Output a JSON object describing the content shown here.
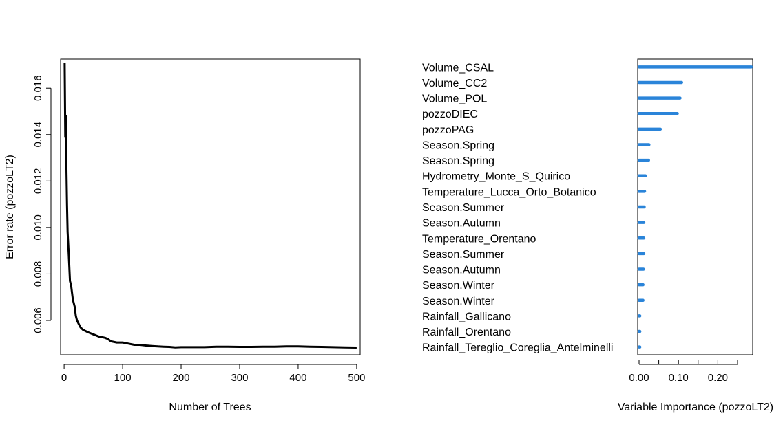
{
  "chart_data": [
    {
      "type": "line",
      "xlabel": "Number of Trees",
      "ylabel": "Error rate (pozzoLT2)",
      "xlim": [
        -6,
        506
      ],
      "ylim": [
        0.00452,
        0.01725
      ],
      "xticks": [
        0,
        100,
        200,
        300,
        400,
        500
      ],
      "xtick_labels": [
        "0",
        "100",
        "200",
        "300",
        "400",
        "500"
      ],
      "yticks": [
        0.006,
        0.008,
        0.01,
        0.012,
        0.014,
        0.016
      ],
      "ytick_labels": [
        "0.006",
        "0.008",
        "0.010",
        "0.012",
        "0.014",
        "0.016"
      ],
      "color": "#000000",
      "series": [
        {
          "x": [
            1,
            2,
            3,
            4,
            5,
            6,
            8,
            10,
            12,
            15,
            18,
            20,
            22,
            25,
            28,
            32,
            36,
            40,
            45,
            50,
            55,
            60,
            65,
            70,
            75,
            80,
            90,
            100,
            110,
            120,
            130,
            140,
            150,
            160,
            170,
            180,
            190,
            200,
            220,
            240,
            260,
            280,
            300,
            320,
            340,
            360,
            380,
            400,
            420,
            440,
            460,
            480,
            500
          ],
          "y": [
            0.0171,
            0.0139,
            0.0148,
            0.0125,
            0.011,
            0.0098,
            0.0088,
            0.0077,
            0.0075,
            0.0069,
            0.0066,
            0.0062,
            0.006,
            0.00585,
            0.0057,
            0.0056,
            0.00555,
            0.0055,
            0.00545,
            0.0054,
            0.00535,
            0.0053,
            0.00528,
            0.00525,
            0.0052,
            0.0051,
            0.00505,
            0.00505,
            0.005,
            0.00495,
            0.00495,
            0.00492,
            0.0049,
            0.00488,
            0.00487,
            0.00486,
            0.00484,
            0.00485,
            0.00485,
            0.00485,
            0.00487,
            0.00487,
            0.00486,
            0.00486,
            0.00487,
            0.00487,
            0.00488,
            0.00488,
            0.00487,
            0.00486,
            0.00485,
            0.00484,
            0.00483
          ]
        }
      ]
    },
    {
      "type": "bar",
      "orientation": "horizontal",
      "xlabel": "Variable Importance (pozzoLT2)",
      "xlim": [
        -0.0035,
        0.2885
      ],
      "xticks": [
        0.0,
        0.05,
        0.1,
        0.15,
        0.2,
        0.25
      ],
      "xtick_labels": [
        "0.00",
        "",
        "0.10",
        "",
        "0.20",
        ""
      ],
      "bar_color": "#2A84D9",
      "categories": [
        "Volume_CSAL",
        "Volume_CC2",
        "Volume_POL",
        "pozzoDIEC",
        "pozzoPAG",
        "Season.Spring",
        "Season.Spring",
        "Hydrometry_Monte_S_Quirico",
        "Temperature_Lucca_Orto_Botanico",
        "Season.Summer",
        "Season.Autumn",
        "Temperature_Orentano",
        "Season.Summer",
        "Season.Autumn",
        "Season.Winter",
        "Season.Winter",
        "Rainfall_Gallicano",
        "Rainfall_Orentano",
        "Rainfall_Tereglio_Coreglia_Antelminelli"
      ],
      "values": [
        0.285,
        0.108,
        0.104,
        0.097,
        0.054,
        0.025,
        0.024,
        0.016,
        0.014,
        0.013,
        0.012,
        0.012,
        0.012,
        0.011,
        0.01,
        0.01,
        0.002,
        0.002,
        0.002
      ]
    }
  ]
}
